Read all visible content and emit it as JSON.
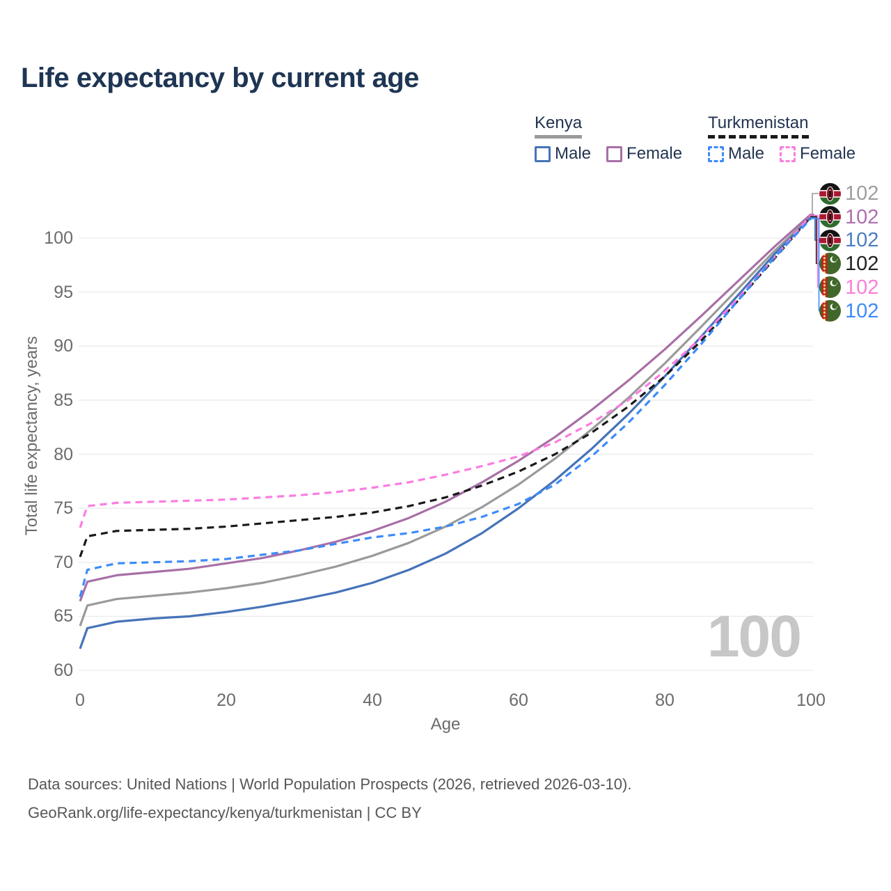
{
  "title": "Life expectancy by current age",
  "legend": {
    "groups": [
      {
        "label": "Kenya",
        "line_style": "solid",
        "underline_color": "#9a9a9a",
        "items": [
          {
            "label": "Male",
            "series": "kenya_male"
          },
          {
            "label": "Female",
            "series": "kenya_female"
          }
        ]
      },
      {
        "label": "Turkmenistan",
        "line_style": "dashed",
        "underline_color": "#1a1a1a",
        "items": [
          {
            "label": "Male",
            "series": "turkmenistan_male"
          },
          {
            "label": "Female",
            "series": "turkmenistan_female"
          }
        ]
      }
    ]
  },
  "chart_data": {
    "type": "line",
    "title": "Life expectancy by current age",
    "xlabel": "Age",
    "ylabel": "Total life expectancy, years",
    "xlim": [
      0,
      100
    ],
    "ylim": [
      60,
      102.5
    ],
    "x_ticks": [
      0,
      20,
      40,
      60,
      80,
      100
    ],
    "y_ticks": [
      60,
      65,
      70,
      75,
      80,
      85,
      90,
      95,
      100
    ],
    "grid": "horizontal",
    "legend_position": "top-right",
    "x": [
      0,
      1,
      5,
      10,
      15,
      20,
      25,
      30,
      35,
      40,
      45,
      50,
      55,
      60,
      65,
      70,
      75,
      80,
      85,
      90,
      95,
      100
    ],
    "series": [
      {
        "key": "kenya_total",
        "name": "Kenya Total",
        "country": "Kenya",
        "sex": "Total",
        "color": "#9a9a9a",
        "dash": false,
        "values": [
          64.1,
          66.0,
          66.6,
          66.9,
          67.2,
          67.6,
          68.1,
          68.8,
          69.6,
          70.6,
          71.8,
          73.3,
          75.1,
          77.2,
          79.6,
          82.3,
          85.2,
          88.4,
          91.8,
          95.3,
          98.8,
          102.0
        ]
      },
      {
        "key": "kenya_male",
        "name": "Kenya Male",
        "country": "Kenya",
        "sex": "Male",
        "color": "#4673b8",
        "dash": false,
        "values": [
          62.0,
          63.9,
          64.5,
          64.8,
          65.0,
          65.4,
          65.9,
          66.5,
          67.2,
          68.1,
          69.3,
          70.8,
          72.7,
          75.0,
          77.6,
          80.5,
          83.7,
          87.2,
          90.9,
          94.7,
          98.5,
          101.9
        ]
      },
      {
        "key": "kenya_female",
        "name": "Kenya Female",
        "country": "Kenya",
        "sex": "Female",
        "color": "#a86fa6",
        "dash": false,
        "values": [
          66.4,
          68.2,
          68.8,
          69.1,
          69.4,
          69.9,
          70.4,
          71.1,
          71.9,
          72.9,
          74.1,
          75.6,
          77.4,
          79.4,
          81.6,
          84.1,
          86.8,
          89.7,
          92.8,
          96.0,
          99.2,
          102.2
        ]
      },
      {
        "key": "turkmenistan_total",
        "name": "Turkmenistan Total",
        "country": "Turkmenistan",
        "sex": "Total",
        "color": "#1a1a1a",
        "dash": true,
        "values": [
          70.5,
          72.4,
          72.9,
          73.0,
          73.1,
          73.3,
          73.6,
          73.9,
          74.2,
          74.6,
          75.2,
          76.0,
          77.1,
          78.4,
          80.0,
          82.0,
          84.4,
          87.2,
          90.5,
          94.2,
          98.1,
          102.0
        ]
      },
      {
        "key": "turkmenistan_female",
        "name": "Turkmenistan Female",
        "country": "Turkmenistan",
        "sex": "Female",
        "color": "#fb7de0",
        "dash": true,
        "values": [
          73.2,
          75.2,
          75.5,
          75.6,
          75.7,
          75.8,
          76.0,
          76.2,
          76.5,
          76.9,
          77.4,
          78.1,
          78.9,
          79.8,
          81.1,
          82.9,
          85.0,
          87.7,
          90.8,
          94.4,
          98.2,
          102.1
        ]
      },
      {
        "key": "turkmenistan_male",
        "name": "Turkmenistan Male",
        "country": "Turkmenistan",
        "sex": "Male",
        "color": "#3d8bfa",
        "dash": true,
        "values": [
          66.8,
          69.3,
          69.9,
          70.0,
          70.1,
          70.3,
          70.7,
          71.1,
          71.7,
          72.3,
          72.7,
          73.3,
          74.2,
          75.4,
          77.2,
          79.8,
          82.9,
          86.4,
          90.2,
          94.2,
          98.2,
          101.8
        ]
      }
    ]
  },
  "end_labels": [
    {
      "country": "kenya",
      "series": "kenya_total",
      "value": "102",
      "value_color": "#9e9e9e"
    },
    {
      "country": "kenya",
      "series": "kenya_female",
      "value": "102",
      "value_color": "#b06fae"
    },
    {
      "country": "kenya",
      "series": "kenya_male",
      "value": "102",
      "value_color": "#4c7dbf"
    },
    {
      "country": "turkmenistan",
      "series": "turkmenistan_total",
      "value": "102",
      "value_color": "#212121"
    },
    {
      "country": "turkmenistan",
      "series": "turkmenistan_female",
      "value": "102",
      "value_color": "#f97fd9"
    },
    {
      "country": "turkmenistan",
      "series": "turkmenistan_male",
      "value": "102",
      "value_color": "#3d8bfa"
    }
  ],
  "watermark": "100",
  "footer": {
    "line1": "Data sources: United Nations | World Population Prospects (2026, retrieved 2026-03-10).",
    "line2": "GeoRank.org/life-expectancy/kenya/turkmenistan | CC BY"
  }
}
